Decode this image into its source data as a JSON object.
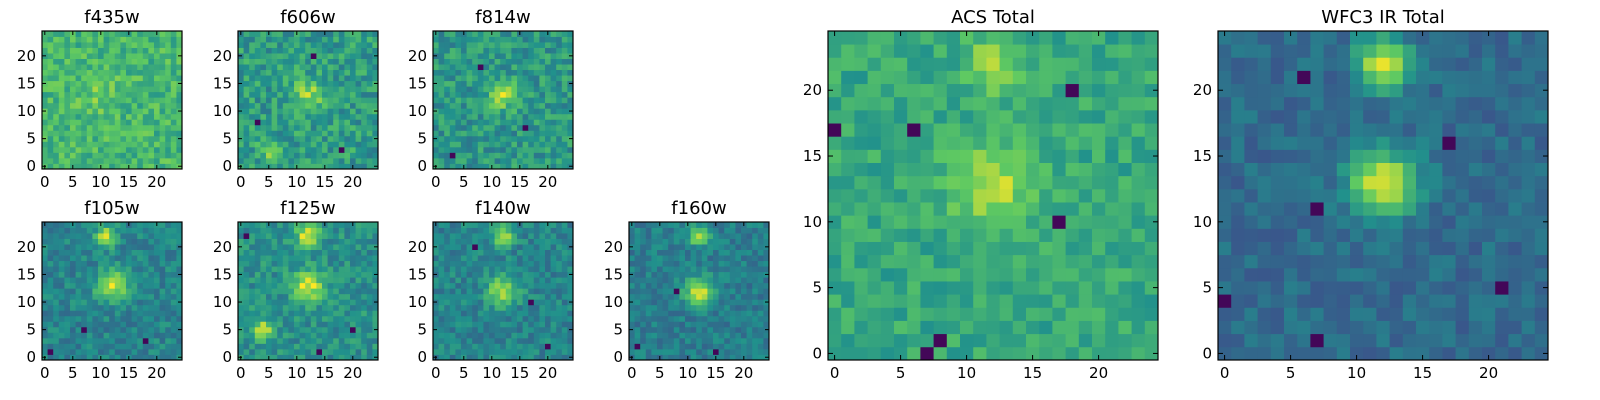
{
  "figure": {
    "grid_size": 25,
    "colormap": "viridis",
    "colormap_stops": [
      "#440154",
      "#3b528b",
      "#21918c",
      "#5ec962",
      "#fde725"
    ]
  },
  "chart_data": [
    {
      "type": "heatmap",
      "title": "f435w",
      "xlim": [
        0,
        24
      ],
      "ylim": [
        0,
        24
      ],
      "xticks": [
        "0",
        "5",
        "10",
        "15",
        "20"
      ],
      "yticks": [
        "0",
        "5",
        "10",
        "15",
        "20"
      ],
      "bias": 0.66,
      "peak_amp": 0.1,
      "noise": 0.13,
      "peaks": [
        [
          10,
          13,
          2.5
        ]
      ],
      "holes": []
    },
    {
      "type": "heatmap",
      "title": "f606w",
      "xlim": [
        0,
        24
      ],
      "ylim": [
        0,
        24
      ],
      "xticks": [
        "0",
        "5",
        "10",
        "15",
        "20"
      ],
      "yticks": [
        "0",
        "5",
        "10",
        "15",
        "20"
      ],
      "bias": 0.55,
      "peak_amp": 0.3,
      "noise": 0.15,
      "peaks": [
        [
          12,
          13,
          1.8
        ],
        [
          5,
          3,
          1.2
        ]
      ],
      "holes": [
        [
          3,
          8
        ],
        [
          13,
          20
        ],
        [
          18,
          3
        ]
      ]
    },
    {
      "type": "heatmap",
      "title": "f814w",
      "xlim": [
        0,
        24
      ],
      "ylim": [
        0,
        24
      ],
      "xticks": [
        "0",
        "5",
        "10",
        "15",
        "20"
      ],
      "yticks": [
        "0",
        "5",
        "10",
        "15",
        "20"
      ],
      "bias": 0.53,
      "peak_amp": 0.35,
      "noise": 0.14,
      "peaks": [
        [
          12,
          13,
          1.8
        ]
      ],
      "holes": [
        [
          8,
          18
        ],
        [
          16,
          7
        ],
        [
          3,
          2
        ]
      ]
    },
    {
      "type": "heatmap",
      "title": "f105w",
      "xlim": [
        0,
        24
      ],
      "ylim": [
        0,
        24
      ],
      "xticks": [
        "0",
        "5",
        "10",
        "15",
        "20"
      ],
      "yticks": [
        "0",
        "5",
        "10",
        "15",
        "20"
      ],
      "bias": 0.45,
      "peak_amp": 0.45,
      "noise": 0.11,
      "peaks": [
        [
          12,
          13,
          2.0
        ],
        [
          11,
          22,
          1.3
        ]
      ],
      "holes": [
        [
          7,
          5
        ],
        [
          18,
          3
        ],
        [
          1,
          1
        ]
      ]
    },
    {
      "type": "heatmap",
      "title": "f125w",
      "xlim": [
        0,
        24
      ],
      "ylim": [
        0,
        24
      ],
      "xticks": [
        "0",
        "5",
        "10",
        "15",
        "20"
      ],
      "yticks": [
        "0",
        "5",
        "10",
        "15",
        "20"
      ],
      "bias": 0.5,
      "peak_amp": 0.45,
      "noise": 0.12,
      "peaks": [
        [
          12,
          13,
          2.0
        ],
        [
          12,
          22,
          1.5
        ],
        [
          4,
          5,
          1.2
        ]
      ],
      "holes": [
        [
          1,
          22
        ],
        [
          20,
          5
        ],
        [
          14,
          1
        ]
      ]
    },
    {
      "type": "heatmap",
      "title": "f140w",
      "xlim": [
        0,
        24
      ],
      "ylim": [
        0,
        24
      ],
      "xticks": [
        "0",
        "5",
        "10",
        "15",
        "20"
      ],
      "yticks": [
        "0",
        "5",
        "10",
        "15",
        "20"
      ],
      "bias": 0.45,
      "peak_amp": 0.45,
      "noise": 0.11,
      "peaks": [
        [
          12,
          12,
          1.9
        ],
        [
          12,
          22,
          1.3
        ]
      ],
      "holes": [
        [
          17,
          10
        ],
        [
          7,
          20
        ],
        [
          20,
          2
        ]
      ]
    },
    {
      "type": "heatmap",
      "title": "f160w",
      "xlim": [
        0,
        24
      ],
      "ylim": [
        0,
        24
      ],
      "xticks": [
        "0",
        "5",
        "10",
        "15",
        "20"
      ],
      "yticks": [
        "0",
        "5",
        "10",
        "15",
        "20"
      ],
      "bias": 0.42,
      "peak_amp": 0.5,
      "noise": 0.1,
      "peaks": [
        [
          12,
          12,
          1.8
        ],
        [
          12,
          22,
          1.2
        ]
      ],
      "holes": [
        [
          8,
          12
        ],
        [
          15,
          1
        ],
        [
          1,
          2
        ]
      ]
    },
    {
      "type": "heatmap",
      "title": "ACS Total",
      "xlim": [
        0,
        24
      ],
      "ylim": [
        0,
        24
      ],
      "xticks": [
        "0",
        "5",
        "10",
        "15",
        "20"
      ],
      "yticks": [
        "0",
        "5",
        "10",
        "15",
        "20"
      ],
      "bias": 0.6,
      "peak_amp": 0.3,
      "noise": 0.1,
      "peaks": [
        [
          12,
          13,
          2.2
        ],
        [
          12,
          22,
          1.3
        ]
      ],
      "holes": [
        [
          7,
          0
        ],
        [
          8,
          1
        ],
        [
          17,
          10
        ],
        [
          6,
          17
        ],
        [
          0,
          17
        ],
        [
          18,
          20
        ]
      ]
    },
    {
      "type": "heatmap",
      "title": "WFC3 IR Total",
      "xlim": [
        0,
        24
      ],
      "ylim": [
        0,
        24
      ],
      "xticks": [
        "0",
        "5",
        "10",
        "15",
        "20"
      ],
      "yticks": [
        "0",
        "5",
        "10",
        "15",
        "20"
      ],
      "bias": 0.35,
      "peak_amp": 0.6,
      "noise": 0.08,
      "peaks": [
        [
          12,
          13,
          1.8
        ],
        [
          12,
          22,
          1.4
        ]
      ],
      "holes": [
        [
          7,
          11
        ],
        [
          17,
          16
        ],
        [
          7,
          1
        ],
        [
          0,
          4
        ],
        [
          6,
          21
        ],
        [
          21,
          5
        ]
      ]
    }
  ]
}
